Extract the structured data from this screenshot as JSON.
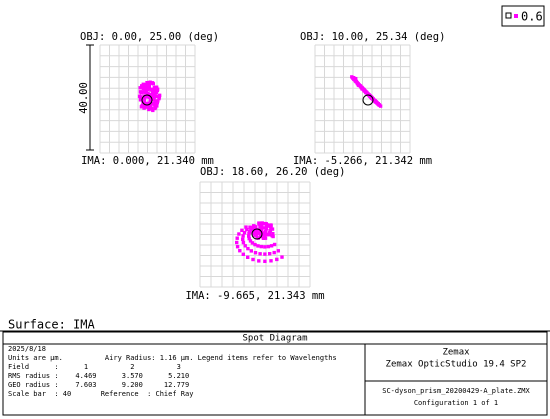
{
  "legend": {
    "label": "0.6"
  },
  "scale_label": "40.00",
  "plots": [
    {
      "obj": "OBJ: 0.00, 25.00 (deg)",
      "ima": "IMA: 0.000, 21.340 mm"
    },
    {
      "obj": "OBJ: 10.00, 25.34 (deg)",
      "ima": "IMA: -5.266, 21.342 mm"
    },
    {
      "obj": "OBJ: 18.60, 26.20 (deg)",
      "ima": "IMA: -9.665, 21.343 mm"
    }
  ],
  "surface": "Surface: IMA",
  "footer": {
    "title": "Spot Diagram",
    "lines": [
      "2025/8/18",
      "Units are µm.          Airy Radius: 1.16 µm. Legend items refer to Wavelengths",
      "Field      :      1          2          3",
      "RMS radius :    4.469      3.570      5.210",
      "GEO radius :    7.603      9.200     12.779",
      "Scale bar  : 40       Reference  : Chief Ray"
    ],
    "company": "Zemax",
    "product": "Zemax OpticStudio 19.4 SP2",
    "file": "SC-dyson_prism_20200429-A_plate.ZMX",
    "config": "Configuration 1 of 1"
  }
}
